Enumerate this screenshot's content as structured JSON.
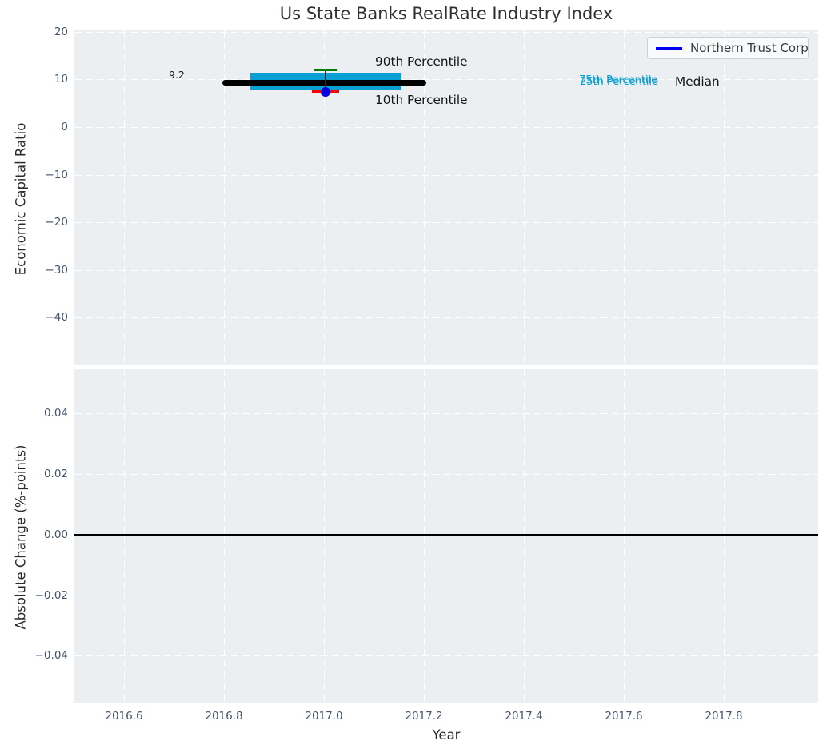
{
  "title": "Us State Banks RealRate Industry Index",
  "legend": {
    "label": "Northern Trust Corp"
  },
  "top_axis": {
    "ylabel": "Economic Capital Ratio",
    "yticks": [
      "20",
      "10",
      "0",
      "−10",
      "−20",
      "−30",
      "−40"
    ],
    "annotations": {
      "median_value": "9.2",
      "p90": "90th Percentile",
      "p10": "10th Percentile",
      "p75": "75th Percentile",
      "p25": "25th Percentile",
      "median": "Median"
    }
  },
  "bottom_axis": {
    "ylabel": "Absolute Change (%-points)",
    "xlabel": "Year",
    "yticks": [
      "0.04",
      "0.02",
      "0.00",
      "−0.02",
      "−0.04"
    ],
    "xticks": [
      "2016.6",
      "2016.8",
      "2017.0",
      "2017.2",
      "2017.4",
      "2017.6",
      "2017.8"
    ]
  },
  "colors": {
    "plot_background": "#eceff1",
    "grid": "#ffffff",
    "iqr_box": "#0aa0d4",
    "median_line": "#000000",
    "p90_cap": "#007d00",
    "p10_cap": "#ff0000",
    "company_dot": "#0000dc",
    "legend_line": "#0000f0",
    "cyan_label": "#0aa0d4",
    "tick_label": "#44536a"
  },
  "chart_data": [
    {
      "type": "box",
      "title": "Us State Banks RealRate Industry Index",
      "ylabel": "Economic Capital Ratio",
      "ylim": [
        -50,
        20.3
      ],
      "xlim": [
        2016.5,
        2018.0
      ],
      "yticks": [
        20,
        10,
        0,
        -10,
        -20,
        -30,
        -40
      ],
      "grid": true,
      "legend_position": "upper right",
      "legend": [
        "Northern Trust Corp"
      ],
      "x": [
        2017.0
      ],
      "series": [
        {
          "name": "Median",
          "values": [
            9.2
          ],
          "span_x": [
            2016.8,
            2017.2
          ],
          "color": "#000000"
        },
        {
          "name": "75th Percentile",
          "values": [
            11.2
          ],
          "span_x": [
            2016.85,
            2017.15
          ],
          "color": "#0aa0d4"
        },
        {
          "name": "25th Percentile",
          "values": [
            7.7
          ],
          "span_x": [
            2016.85,
            2017.15
          ],
          "color": "#0aa0d4"
        },
        {
          "name": "90th Percentile",
          "values": [
            12.1
          ],
          "color": "#007d00"
        },
        {
          "name": "10th Percentile",
          "values": [
            7.3
          ],
          "color": "#ff0000"
        },
        {
          "name": "Northern Trust Corp",
          "values": [
            7.4
          ],
          "color": "#0000dc"
        }
      ],
      "annotations": [
        "9.2",
        "90th Percentile",
        "10th Percentile",
        "75th Percentile",
        "25th Percentile",
        "Median"
      ]
    },
    {
      "type": "line",
      "ylabel": "Absolute Change (%-points)",
      "xlabel": "Year",
      "ylim": [
        -0.055,
        0.055
      ],
      "xlim": [
        2016.5,
        2018.0
      ],
      "yticks": [
        0.04,
        0.02,
        0.0,
        -0.02,
        -0.04
      ],
      "xticks": [
        2016.6,
        2016.8,
        2017.0,
        2017.2,
        2017.4,
        2017.6,
        2017.8
      ],
      "grid": true,
      "zero_line": 0.0,
      "series": []
    }
  ]
}
